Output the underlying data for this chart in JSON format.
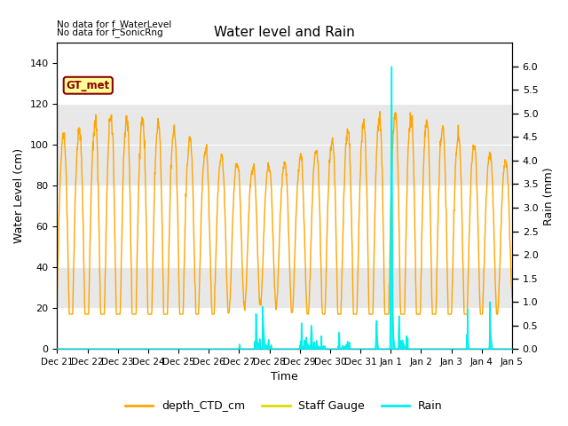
{
  "title": "Water level and Rain",
  "xlabel": "Time",
  "ylabel_left": "Water Level (cm)",
  "ylabel_right": "Rain (mm)",
  "ylim_left": [
    0,
    150
  ],
  "ylim_right": [
    0,
    6.5
  ],
  "yticks_left": [
    0,
    20,
    40,
    60,
    80,
    100,
    120,
    140
  ],
  "yticks_right": [
    0.0,
    0.5,
    1.0,
    1.5,
    2.0,
    2.5,
    3.0,
    3.5,
    4.0,
    4.5,
    5.0,
    5.5,
    6.0
  ],
  "color_ctd": "#FFA500",
  "color_staff": "#DDDD00",
  "color_rain": "#00EFEF",
  "annotation_text1": "No data for f_WaterLevel",
  "annotation_text2": "No data for f_SonicRng",
  "gt_met_label": "GT_met",
  "legend_labels": [
    "depth_CTD_cm",
    "Staff Gauge",
    "Rain"
  ],
  "background_color": "#ffffff",
  "band_colors": [
    "#ffffff",
    "#e0e0e0"
  ],
  "band_ranges_colors": [
    [
      0,
      20,
      "#ffffff"
    ],
    [
      20,
      40,
      "#e8e8e8"
    ],
    [
      40,
      80,
      "#ffffff"
    ],
    [
      80,
      120,
      "#e8e8e8"
    ],
    [
      120,
      150,
      "#ffffff"
    ]
  ]
}
